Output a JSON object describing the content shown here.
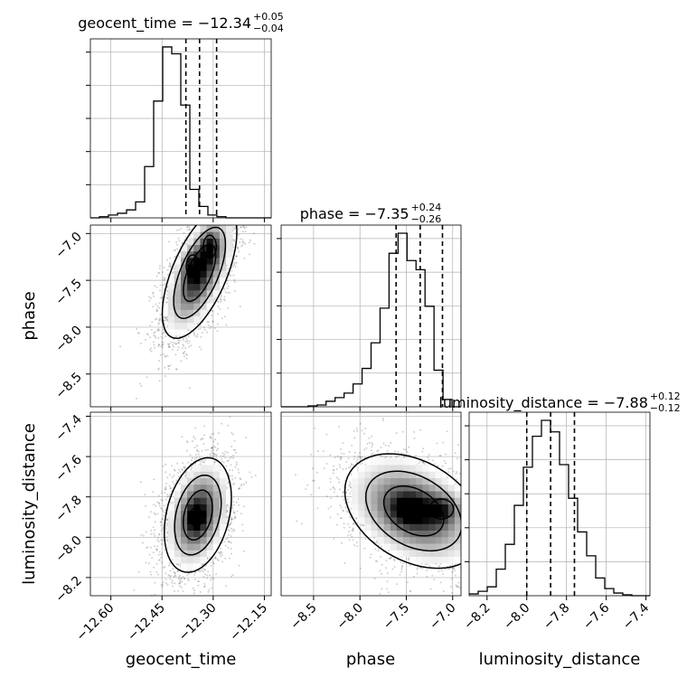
{
  "chart_data": {
    "type": "corner",
    "parameters": [
      "geocent_time",
      "phase",
      "luminosity_distance"
    ],
    "titles": [
      {
        "param": "geocent_time",
        "median": "−12.34",
        "plus": "+0.05",
        "minus": "−0.04"
      },
      {
        "param": "phase",
        "median": "−7.35",
        "plus": "+0.24",
        "minus": "−0.26"
      },
      {
        "param": "luminosity_distance",
        "median": "−7.88",
        "plus": "+0.12",
        "minus": "−0.12"
      }
    ],
    "ranges": {
      "geocent_time": [
        -12.66,
        -12.13
      ],
      "phase": [
        -8.85,
        -6.91
      ],
      "luminosity_distance": [
        -8.29,
        -7.38
      ]
    },
    "ticks": {
      "geocent_time": {
        "values": [
          -12.6,
          -12.45,
          -12.3,
          -12.15
        ],
        "labels": [
          "−12.60",
          "−12.45",
          "−12.30",
          "−12.15"
        ]
      },
      "phase": {
        "values": [
          -8.5,
          -8.0,
          -7.5,
          -7.0
        ],
        "labels": [
          "−8.5",
          "−8.0",
          "−7.5",
          "−7.0"
        ]
      },
      "luminosity_distance": {
        "values": [
          -8.2,
          -8.0,
          -7.8,
          -7.6,
          -7.4
        ],
        "labels": [
          "−8.2",
          "−8.0",
          "−7.8",
          "−7.6",
          "−7.4"
        ]
      }
    },
    "quantiles": {
      "geocent_time": [
        -12.38,
        -12.34,
        -12.29
      ],
      "phase": [
        -7.61,
        -7.35,
        -7.11
      ],
      "luminosity_distance": [
        -8.0,
        -7.88,
        -7.76
      ]
    },
    "histograms": {
      "geocent_time": {
        "edges_range": [
          -12.66,
          -12.13
        ],
        "bins": 20,
        "counts": [
          0,
          2,
          5,
          8,
          14,
          28,
          90,
          205,
          300,
          288,
          198,
          50,
          20,
          5,
          2,
          0,
          0,
          0,
          0,
          0
        ]
      },
      "phase": {
        "edges_range": [
          -8.85,
          -6.91
        ],
        "bins": 20,
        "counts": [
          0,
          0,
          0,
          1,
          2,
          6,
          10,
          15,
          25,
          42,
          70,
          108,
          168,
          190,
          160,
          150,
          110,
          40,
          8,
          0
        ]
      },
      "luminosity_distance": {
        "edges_range": [
          -8.29,
          -7.38
        ],
        "bins": 20,
        "counts": [
          2,
          5,
          10,
          30,
          58,
          102,
          145,
          180,
          198,
          185,
          148,
          110,
          72,
          45,
          20,
          8,
          3,
          1,
          0,
          0
        ]
      }
    },
    "scatter_2d": [
      {
        "x": "geocent_time",
        "y": "phase",
        "mean": [
          -12.34,
          -7.42
        ],
        "sd": [
          0.05,
          0.32
        ],
        "rho": 0.62,
        "peaks": [
          [
            -12.36,
            -7.35
          ],
          [
            -12.31,
            -7.14
          ]
        ]
      },
      {
        "x": "geocent_time",
        "y": "luminosity_distance",
        "mean": [
          -12.345,
          -7.89
        ],
        "sd": [
          0.045,
          0.13
        ],
        "rho": 0.3,
        "peaks": [
          [
            -12.35,
            -7.9
          ]
        ]
      },
      {
        "x": "phase",
        "y": "luminosity_distance",
        "mean": [
          -7.42,
          -7.87
        ],
        "sd": [
          0.34,
          0.13
        ],
        "rho": -0.35,
        "peaks": [
          [
            -7.47,
            -7.86
          ],
          [
            -7.12,
            -7.86
          ]
        ]
      }
    ],
    "grid": true,
    "xlabel": [
      "geocent_time",
      "phase",
      "luminosity_distance"
    ],
    "ylabel": [
      "",
      "phase",
      "luminosity_distance"
    ],
    "colors": {
      "hist": "#000000",
      "points": "#555555",
      "contour": "#000000",
      "grid": "#b0b0b0",
      "quantile": "#000000"
    }
  }
}
